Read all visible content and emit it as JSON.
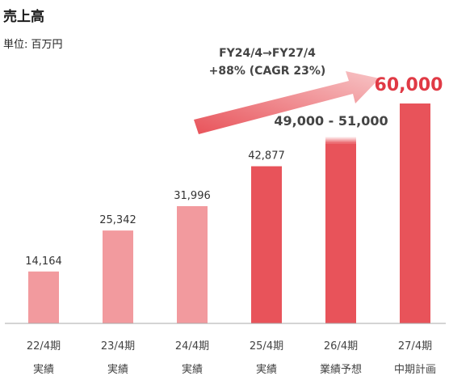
{
  "header": {
    "title": "売上高",
    "unit": "単位: 百万円"
  },
  "growth": {
    "line1": "FY24/4→FY27/4",
    "line2": "+88% (CAGR 23%)"
  },
  "colors": {
    "actual": "#F29A9E",
    "plan": "#E8535A",
    "highlight": "#E03A45",
    "axis": "#aaaaaa"
  },
  "chart_data": {
    "type": "bar",
    "title": "売上高",
    "unit": "百万円",
    "categories": [
      "22/4期",
      "23/4期",
      "24/4期",
      "25/4期",
      "26/4期",
      "27/4期"
    ],
    "sublabels": [
      "実績",
      "実績",
      "実績",
      "実績",
      "業績予想",
      "中期計画"
    ],
    "values": [
      14164,
      25342,
      31996,
      42877,
      51000,
      60000
    ],
    "value_labels": [
      "14,164",
      "25,342",
      "31,996",
      "42,877",
      "49,000 - 51,000",
      "60,000"
    ],
    "forecast_range": {
      "category": "26/4期",
      "low": 49000,
      "high": 51000
    },
    "bar_style": [
      "actual",
      "actual",
      "actual",
      "plan",
      "plan",
      "plan"
    ],
    "ylim": [
      0,
      60000
    ],
    "grid": false,
    "legend": "none"
  }
}
